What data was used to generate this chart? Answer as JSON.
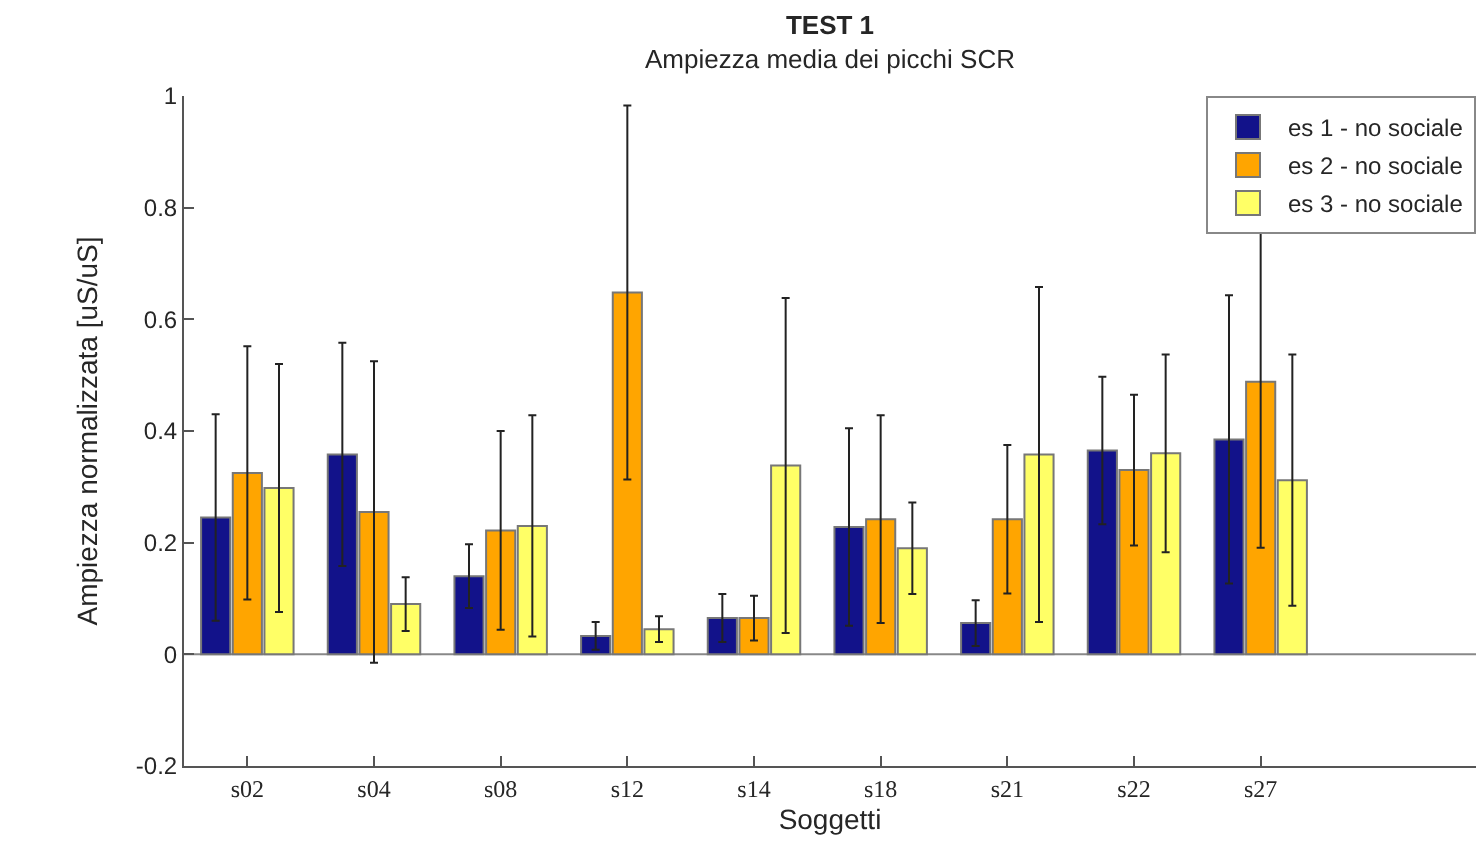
{
  "chart_data": {
    "type": "bar",
    "title": "TEST 1",
    "subtitle": "Ampiezza media dei picchi SCR",
    "xlabel": "Soggetti",
    "ylabel": "Ampiezza normalizzata [uS/uS]",
    "categories": [
      "s02",
      "s04",
      "s08",
      "s12",
      "s14",
      "s18",
      "s21",
      "s22",
      "s27"
    ],
    "series": [
      {
        "name": "es 1 - no sociale",
        "color": "#12128a",
        "values": [
          0.245,
          0.358,
          0.14,
          0.033,
          0.065,
          0.228,
          0.056,
          0.365,
          0.385
        ],
        "errors": [
          0.185,
          0.2,
          0.057,
          0.025,
          0.043,
          0.177,
          0.041,
          0.132,
          0.258
        ]
      },
      {
        "name": "es 2 - no sociale",
        "color": "#ffa500",
        "values": [
          0.325,
          0.255,
          0.222,
          0.648,
          0.065,
          0.242,
          0.242,
          0.33,
          0.488
        ],
        "errors": [
          0.227,
          0.27,
          0.178,
          0.335,
          0.04,
          0.186,
          0.133,
          0.135,
          0.297
        ]
      },
      {
        "name": "es 3 - no sociale",
        "color": "#ffff66",
        "values": [
          0.298,
          0.09,
          0.23,
          0.045,
          0.338,
          0.19,
          0.358,
          0.36,
          0.312
        ],
        "errors": [
          0.222,
          0.048,
          0.198,
          0.023,
          0.3,
          0.082,
          0.3,
          0.177,
          0.225
        ]
      }
    ],
    "ylim": [
      -0.2,
      1
    ],
    "yticks": [
      -0.2,
      0,
      0.2,
      0.4,
      0.6,
      0.8,
      1
    ],
    "grid": false,
    "legend": "top right",
    "ref_lines": [
      {
        "axis": "y",
        "value": 0,
        "color": "#888888"
      }
    ]
  }
}
